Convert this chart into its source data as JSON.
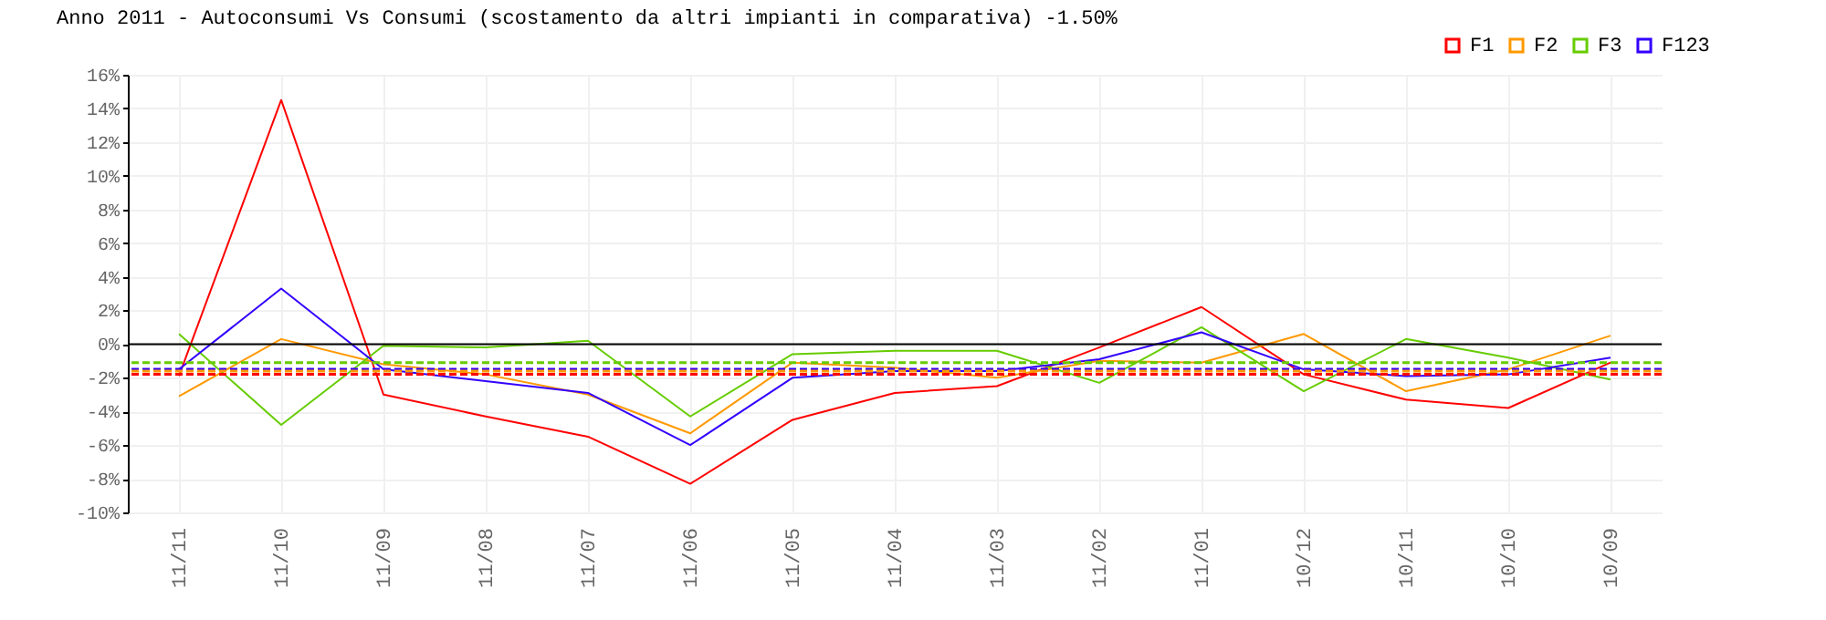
{
  "chart_data": {
    "type": "line",
    "title": "Anno 2011 - Autoconsumi Vs Consumi (scostamento da altri impianti in comparativa) -1.50%",
    "categories": [
      "11/11",
      "11/10",
      "11/09",
      "11/08",
      "11/07",
      "11/06",
      "11/05",
      "11/04",
      "11/03",
      "11/02",
      "11/01",
      "10/12",
      "10/11",
      "10/10",
      "10/09"
    ],
    "series": [
      {
        "name": "F1",
        "color": "#ff0000",
        "values": [
          -1.9,
          14.5,
          -3.0,
          -4.3,
          -5.5,
          -8.3,
          -4.5,
          -2.9,
          -2.5,
          -0.2,
          2.2,
          -1.8,
          -3.3,
          -3.8,
          -1.1
        ]
      },
      {
        "name": "F2",
        "color": "#ff9900",
        "values": [
          -3.1,
          0.3,
          -1.2,
          -1.8,
          -3.0,
          -5.3,
          -1.1,
          -1.4,
          -2.0,
          -1.0,
          -1.1,
          0.6,
          -2.8,
          -1.5,
          0.5
        ]
      },
      {
        "name": "F3",
        "color": "#66cc00",
        "values": [
          0.6,
          -4.8,
          -0.1,
          -0.2,
          0.2,
          -4.3,
          -0.6,
          -0.4,
          -0.4,
          -2.3,
          1.0,
          -2.8,
          0.3,
          -0.8,
          -2.1
        ]
      },
      {
        "name": "F123",
        "color": "#3300ff",
        "values": [
          -1.5,
          3.3,
          -1.5,
          -2.2,
          -2.9,
          -6.0,
          -2.0,
          -1.6,
          -1.6,
          -0.9,
          0.7,
          -1.5,
          -1.9,
          -1.8,
          -0.8
        ]
      }
    ],
    "ylim": [
      -10,
      16
    ],
    "yticks": [
      {
        "value": -10,
        "label": "-10%"
      },
      {
        "value": -8,
        "label": "-8%"
      },
      {
        "value": -6,
        "label": "-6%"
      },
      {
        "value": -4,
        "label": "-4%"
      },
      {
        "value": -2,
        "label": "-2%"
      },
      {
        "value": 0,
        "label": "0%"
      },
      {
        "value": 2,
        "label": "2%"
      },
      {
        "value": 4,
        "label": "4%"
      },
      {
        "value": 6,
        "label": "6%"
      },
      {
        "value": 8,
        "label": "8%"
      },
      {
        "value": 10,
        "label": "10%"
      },
      {
        "value": 12,
        "label": "12%"
      },
      {
        "value": 14,
        "label": "14%"
      },
      {
        "value": 16,
        "label": "16%"
      }
    ],
    "ref_lines": [
      {
        "axis": "y",
        "value": 0,
        "color": "#000000",
        "line_style": "solid"
      },
      {
        "axis": "y",
        "value": -1.1,
        "color": "#66cc00",
        "line_style": "dashed"
      },
      {
        "axis": "y",
        "value": -1.5,
        "color": "#3300ff",
        "line_style": "dashed"
      },
      {
        "axis": "y",
        "value": -1.6,
        "color": "#ff9900",
        "line_style": "dashed"
      },
      {
        "axis": "y",
        "value": -1.8,
        "color": "#ff0000",
        "line_style": "dashed"
      }
    ],
    "grid": true,
    "legend": "top right",
    "marker": "none",
    "line_style": "solid"
  }
}
